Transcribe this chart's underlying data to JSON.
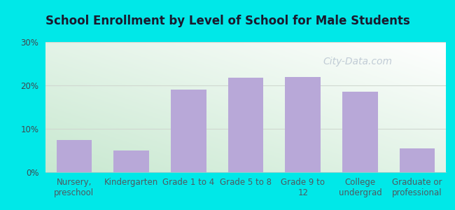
{
  "title": "School Enrollment by Level of School for Male Students",
  "categories": [
    "Nursery,\npreschool",
    "Kindergarten",
    "Grade 1 to 4",
    "Grade 5 to 8",
    "Grade 9 to\n12",
    "College\nundergrad",
    "Graduate or\nprofessional"
  ],
  "values": [
    7.5,
    5.0,
    19.0,
    21.8,
    22.0,
    18.5,
    5.5
  ],
  "bar_color": "#b8a8d8",
  "ylim": [
    0,
    30
  ],
  "yticks": [
    0,
    10,
    20,
    30
  ],
  "ytick_labels": [
    "0%",
    "10%",
    "20%",
    "30%"
  ],
  "title_fontsize": 12,
  "tick_fontsize": 8.5,
  "background_outer": "#00e8e8",
  "background_inner_topleft": "#c8e8d0",
  "background_inner_bottomright": "#ffffff",
  "watermark": "City-Data.com",
  "watermark_color": "#b8c4d0",
  "watermark_fontsize": 10,
  "grid_color": "#d0d8d0",
  "ytick_color": "#404850",
  "xtick_color": "#505860"
}
